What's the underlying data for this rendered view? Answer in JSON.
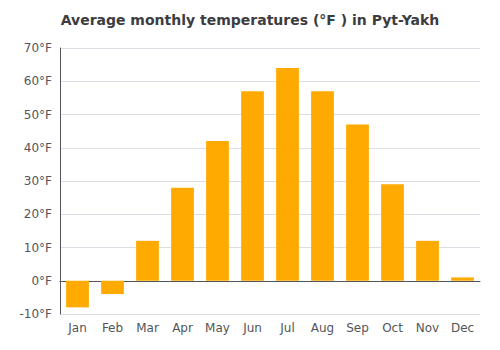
{
  "chart_data": {
    "type": "bar",
    "title": "Average monthly temperatures (°F ) in Pyt-Yakh",
    "categories": [
      "Jan",
      "Feb",
      "Mar",
      "Apr",
      "May",
      "Jun",
      "Jul",
      "Aug",
      "Sep",
      "Oct",
      "Nov",
      "Dec"
    ],
    "values": [
      -8,
      -4,
      12,
      28,
      42,
      57,
      64,
      57,
      47,
      29,
      12,
      1
    ],
    "color": "#FFAA00",
    "ylim": [
      -10,
      70
    ],
    "yticks": [
      {
        "value": -10,
        "label": "-10°F"
      },
      {
        "value": 0,
        "label": "0°F"
      },
      {
        "value": 10,
        "label": "10°F"
      },
      {
        "value": 20,
        "label": "20°F"
      },
      {
        "value": 30,
        "label": "30°F"
      },
      {
        "value": 40,
        "label": "40°F"
      },
      {
        "value": 50,
        "label": "50°F"
      },
      {
        "value": 60,
        "label": "60°F"
      },
      {
        "value": 70,
        "label": "70°F"
      }
    ],
    "grid": true
  }
}
